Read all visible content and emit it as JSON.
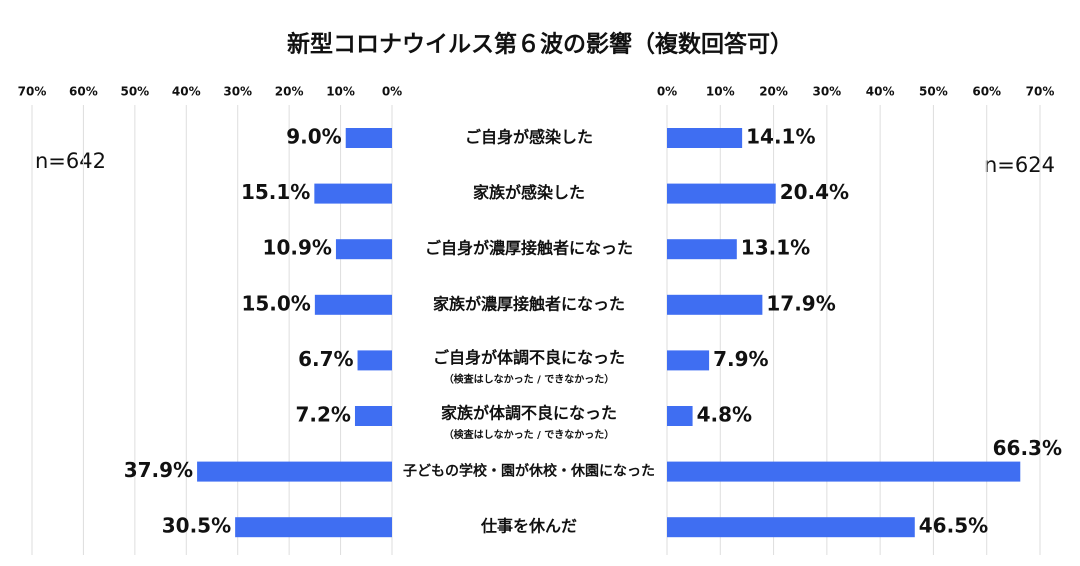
{
  "chart_data": {
    "type": "butterfly-bar",
    "title": "新型コロナウイルス第６波の影響（複数回答可）",
    "categories": [
      "ご自身が感染した",
      "家族が感染した",
      "ご自身が濃厚接触者になった",
      "家族が濃厚接触者になった",
      "ご自身が体調不良になった",
      "家族が体調不良になった",
      "子どもの学校・園が休校・休園になった",
      "仕事を休んだ"
    ],
    "category_notes": [
      null,
      null,
      null,
      null,
      "（検査はしなかった / できなかった）",
      "（検査はしなかった / できなかった）",
      null,
      null
    ],
    "grid": true,
    "series": [
      {
        "name": "n=642",
        "side": "left",
        "color": "#3f6ef2",
        "values": [
          9.0,
          15.1,
          10.9,
          15.0,
          6.7,
          7.2,
          37.9,
          30.5
        ],
        "value_labels": [
          "9.0%",
          "15.1%",
          "10.9%",
          "15.0%",
          "6.7%",
          "7.2%",
          "37.9%",
          "30.5%"
        ],
        "xlim": [
          0,
          70
        ],
        "xticks": [
          {
            "value": 0,
            "label": "0%"
          },
          {
            "value": 10,
            "label": "10%"
          },
          {
            "value": 20,
            "label": "20%"
          },
          {
            "value": 30,
            "label": "30%"
          },
          {
            "value": 40,
            "label": "40%"
          },
          {
            "value": 50,
            "label": "50%"
          },
          {
            "value": 60,
            "label": "60%"
          },
          {
            "value": 70,
            "label": "70%"
          }
        ]
      },
      {
        "name": "n=624",
        "side": "right",
        "color": "#3f6ef2",
        "values": [
          14.1,
          20.4,
          13.1,
          17.9,
          7.9,
          4.8,
          66.3,
          46.5
        ],
        "value_labels": [
          "14.1%",
          "20.4%",
          "13.1%",
          "17.9%",
          "7.9%",
          "4.8%",
          "66.3%",
          "46.5%"
        ],
        "xlim": [
          0,
          70
        ],
        "xticks": [
          {
            "value": 0,
            "label": "0%"
          },
          {
            "value": 10,
            "label": "10%"
          },
          {
            "value": 20,
            "label": "20%"
          },
          {
            "value": 30,
            "label": "30%"
          },
          {
            "value": 40,
            "label": "40%"
          },
          {
            "value": 50,
            "label": "50%"
          },
          {
            "value": 60,
            "label": "60%"
          },
          {
            "value": 70,
            "label": "70%"
          }
        ]
      }
    ]
  }
}
